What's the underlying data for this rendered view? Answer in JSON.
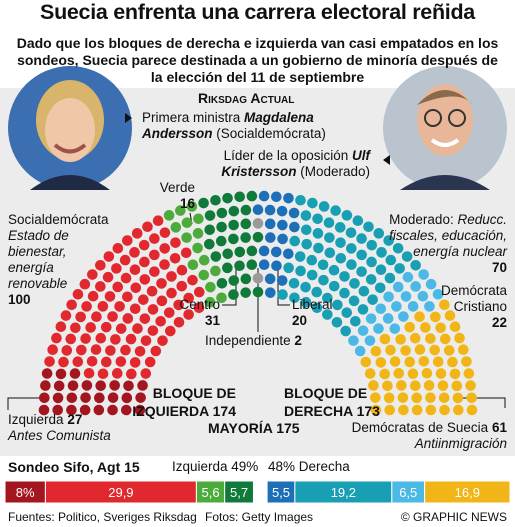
{
  "header": {
    "title": "Suecia enfrenta una carrera electoral reñida",
    "subtitle": "Dado que los bloques de derecha e izquierda van casi empatados en los sondeos, Suecia parece destinada a un gobierno de minoría después de la elección del 11 de septiembre"
  },
  "leaders": [
    {
      "role": "Primera ministra",
      "name": "Magdalena Andersson",
      "party": "(Socialdemócrata)"
    },
    {
      "role": "Líder de la oposición",
      "name": "Ulf Kristersson",
      "party": "(Moderado)"
    }
  ],
  "chart_data": [
    {
      "type": "parliament",
      "title": "Riksdag Actual",
      "series": [
        {
          "name": "Izquierda",
          "color": "#a3161f",
          "value": 27,
          "note": "Antes Comunista"
        },
        {
          "name": "Socialdemócrata",
          "color": "#e0282e",
          "value": 100,
          "note": "Estado de bienestar, energía renovable"
        },
        {
          "name": "Verde",
          "color": "#4dab3c",
          "value": 16
        },
        {
          "name": "Centro",
          "color": "#0f7a3a",
          "value": 31
        },
        {
          "name": "Independiente",
          "color": "#9a9a9a",
          "value": 2
        },
        {
          "name": "Liberal",
          "color": "#1d6fb8",
          "value": 20
        },
        {
          "name": "Moderado:",
          "color": "#199fb3",
          "value": 70,
          "note": "Reducc. fiscales, educación, energía nuclear"
        },
        {
          "name": "Demócrata Cristiano",
          "color": "#4cb8e6",
          "value": 22
        },
        {
          "name": "Demócratas de Suecia",
          "color": "#f2b517",
          "value": 61,
          "note": "Antiinmigración"
        }
      ],
      "blocs": [
        {
          "label": "BLOQUE DE IZQUIERDA",
          "value": 174
        },
        {
          "label": "BLOQUE DE DERECHA",
          "value": 173
        },
        {
          "label": "MAYORÍA",
          "value": 175
        }
      ]
    },
    {
      "type": "split-bar",
      "title": "Sondeo Sifo, Agt 15",
      "xlim": [
        0,
        100
      ],
      "left": {
        "label": "Izquierda 49%",
        "series": [
          {
            "color": "#a3161f",
            "values": [
              8
            ],
            "value_labels": [
              "8%"
            ]
          },
          {
            "color": "#e0282e",
            "values": [
              29.9
            ],
            "value_labels": [
              "29,9"
            ]
          },
          {
            "color": "#4dab3c",
            "values": [
              5.6
            ],
            "value_labels": [
              "5,6"
            ]
          },
          {
            "color": "#0f7a3a",
            "values": [
              5.7
            ],
            "value_labels": [
              "5,7"
            ]
          }
        ]
      },
      "right": {
        "label": "48% Derecha",
        "series": [
          {
            "color": "#1d6fb8",
            "values": [
              5.5
            ],
            "value_labels": [
              "5,5"
            ]
          },
          {
            "color": "#199fb3",
            "values": [
              19.2
            ],
            "value_labels": [
              "19,2"
            ]
          },
          {
            "color": "#4cb8e6",
            "values": [
              6.5
            ],
            "value_labels": [
              "6,5"
            ]
          },
          {
            "color": "#f2b517",
            "values": [
              16.9
            ],
            "value_labels": [
              "16,9"
            ]
          }
        ]
      }
    }
  ],
  "footer": {
    "sources": "Fuentes: Politico, Sveriges Riksdag",
    "photos": "Fotos: Getty Images",
    "credit": "© GRAPHIC NEWS"
  }
}
